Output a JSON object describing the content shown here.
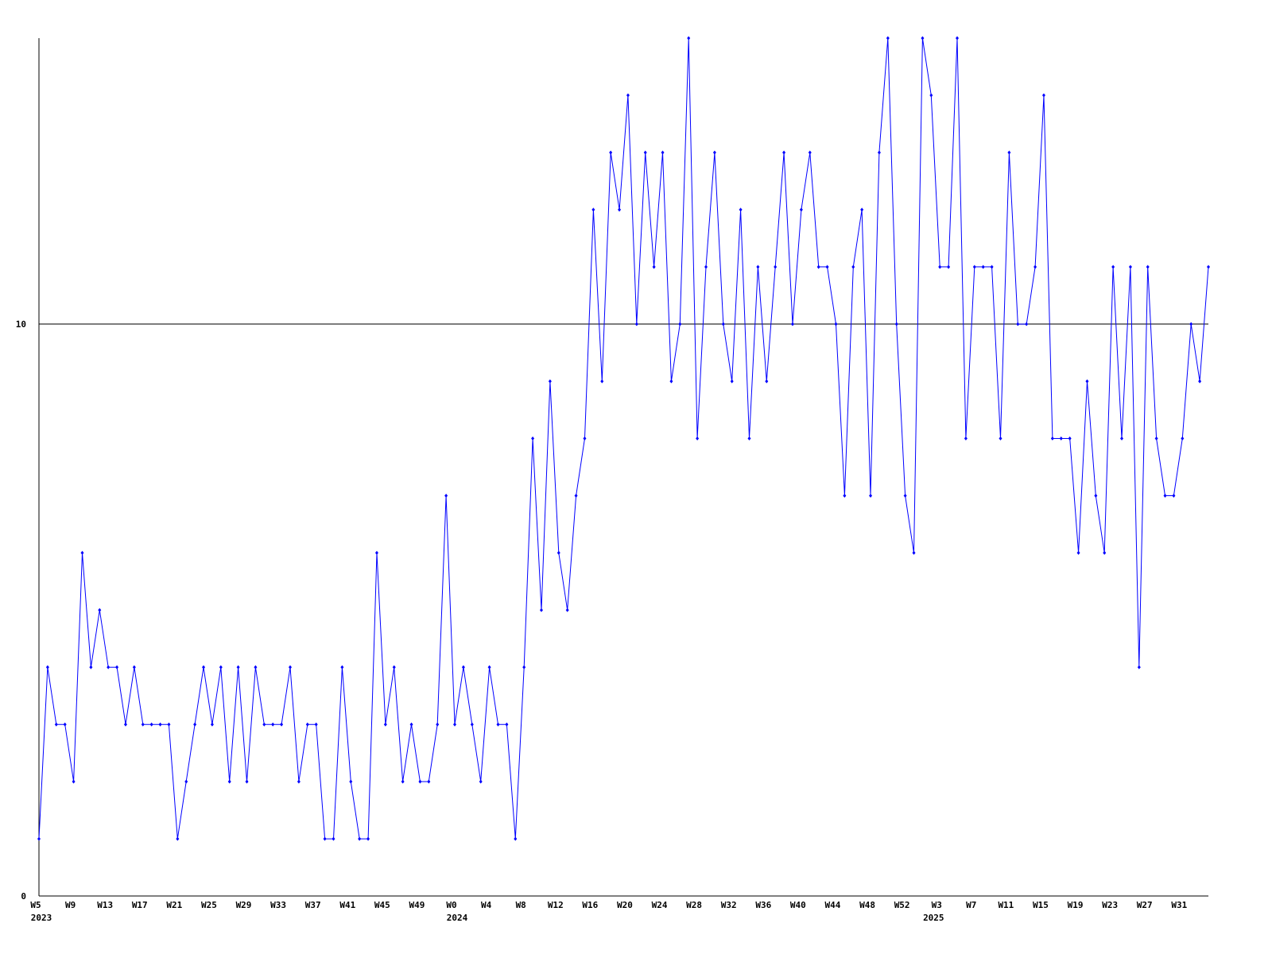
{
  "chart_data": {
    "type": "line",
    "color": "#0000ff",
    "categories": [
      "W5",
      null,
      null,
      null,
      "W9",
      null,
      null,
      null,
      "W13",
      null,
      null,
      null,
      "W17",
      null,
      null,
      null,
      "W21",
      null,
      null,
      null,
      "W25",
      null,
      null,
      null,
      "W29",
      null,
      null,
      null,
      "W33",
      null,
      null,
      null,
      "W37",
      null,
      null,
      null,
      "W41",
      null,
      null,
      null,
      "W45",
      null,
      null,
      null,
      "W49",
      null,
      null,
      null,
      "W0",
      null,
      null,
      null,
      "W4",
      null,
      null,
      null,
      "W8",
      null,
      null,
      null,
      "W12",
      null,
      null,
      null,
      "W16",
      null,
      null,
      null,
      "W20",
      null,
      null,
      null,
      "W24",
      null,
      null,
      null,
      "W28",
      null,
      null,
      null,
      "W32",
      null,
      null,
      null,
      "W36",
      null,
      null,
      null,
      "W40",
      null,
      null,
      null,
      "W44",
      null,
      null,
      null,
      "W48",
      null,
      null,
      null,
      "W52",
      null,
      null,
      null,
      "W3",
      null,
      null,
      null,
      "W7",
      null,
      null,
      null,
      "W11",
      null,
      null,
      null,
      "W15",
      null,
      null,
      null,
      "W19",
      null,
      null,
      null,
      "W23",
      null,
      null,
      null,
      "W27",
      null,
      null,
      null,
      "W31",
      null,
      null,
      null
    ],
    "year_labels": [
      "2023",
      null,
      null,
      null,
      null,
      null,
      null,
      null,
      null,
      null,
      null,
      null,
      null,
      null,
      null,
      null,
      null,
      null,
      null,
      null,
      null,
      null,
      null,
      null,
      null,
      null,
      null,
      null,
      null,
      null,
      null,
      null,
      null,
      null,
      null,
      null,
      null,
      null,
      null,
      null,
      null,
      null,
      null,
      null,
      null,
      null,
      null,
      null,
      "2024",
      null,
      null,
      null,
      null,
      null,
      null,
      null,
      null,
      null,
      null,
      null,
      null,
      null,
      null,
      null,
      null,
      null,
      null,
      null,
      null,
      null,
      null,
      null,
      null,
      null,
      null,
      null,
      null,
      null,
      null,
      null,
      null,
      null,
      null,
      null,
      null,
      null,
      null,
      null,
      null,
      null,
      null,
      null,
      null,
      null,
      null,
      null,
      null,
      null,
      null,
      null,
      null,
      null,
      null,
      "2025",
      null,
      null,
      null,
      null,
      null,
      null,
      null,
      null,
      null,
      null,
      null,
      null,
      null,
      null,
      null,
      null,
      null,
      null,
      null,
      null,
      null,
      null,
      null,
      null,
      null,
      null,
      null,
      null,
      null,
      null,
      null,
      null,
      null
    ],
    "values": [
      1,
      4,
      3,
      3,
      2,
      6,
      4,
      5,
      4,
      4,
      3,
      4,
      3,
      3,
      3,
      3,
      1,
      2,
      3,
      4,
      3,
      4,
      2,
      4,
      2,
      4,
      3,
      3,
      3,
      4,
      2,
      3,
      3,
      1,
      1,
      4,
      2,
      1,
      1,
      6,
      3,
      4,
      2,
      3,
      2,
      2,
      3,
      7,
      3,
      4,
      3,
      2,
      4,
      3,
      3,
      1,
      4,
      8,
      5,
      9,
      6,
      5,
      7,
      8,
      12,
      9,
      13,
      12,
      14,
      10,
      13,
      11,
      13,
      9,
      10,
      15,
      8,
      11,
      13,
      10,
      9,
      12,
      8,
      11,
      9,
      11,
      13,
      10,
      12,
      13,
      11,
      11,
      10,
      7,
      11,
      12,
      7,
      13,
      15,
      10,
      7,
      6,
      15,
      14,
      11,
      11,
      15,
      8,
      11,
      11,
      11,
      8,
      13,
      10,
      10,
      11,
      14,
      8,
      8,
      8,
      6,
      9,
      7,
      6,
      11,
      8,
      11,
      4,
      11,
      8,
      7,
      7,
      8,
      10,
      9,
      11
    ],
    "ylim": [
      0,
      15
    ],
    "yticks": [
      0,
      10
    ],
    "grid": true
  }
}
